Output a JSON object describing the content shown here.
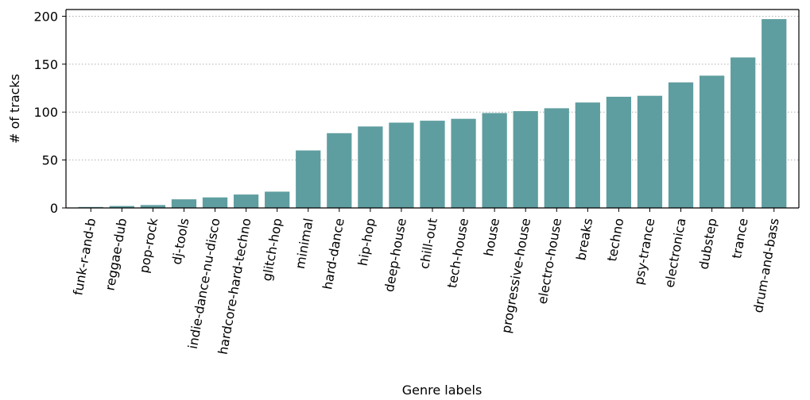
{
  "chart_data": {
    "type": "bar",
    "title": "",
    "xlabel": "Genre labels",
    "ylabel": "# of tracks",
    "ylim": [
      0,
      207
    ],
    "yticks": [
      "0",
      "50",
      "100",
      "150",
      "200"
    ],
    "grid": "horizontal dotted",
    "bar_color": "#5f9ea0",
    "categories": [
      "funk-r-and-b",
      "reggae-dub",
      "pop-rock",
      "dj-tools",
      "indie-dance-nu-disco",
      "hardcore-hard-techno",
      "glitch-hop",
      "minimal",
      "hard-dance",
      "hip-hop",
      "deep-house",
      "chill-out",
      "tech-house",
      "house",
      "progressive-house",
      "electro-house",
      "breaks",
      "techno",
      "psy-trance",
      "electronica",
      "dubstep",
      "trance",
      "drum-and-bass"
    ],
    "values": [
      1,
      2,
      3,
      9,
      11,
      14,
      17,
      60,
      78,
      85,
      89,
      91,
      93,
      99,
      101,
      104,
      110,
      116,
      117,
      131,
      138,
      157,
      197
    ]
  }
}
